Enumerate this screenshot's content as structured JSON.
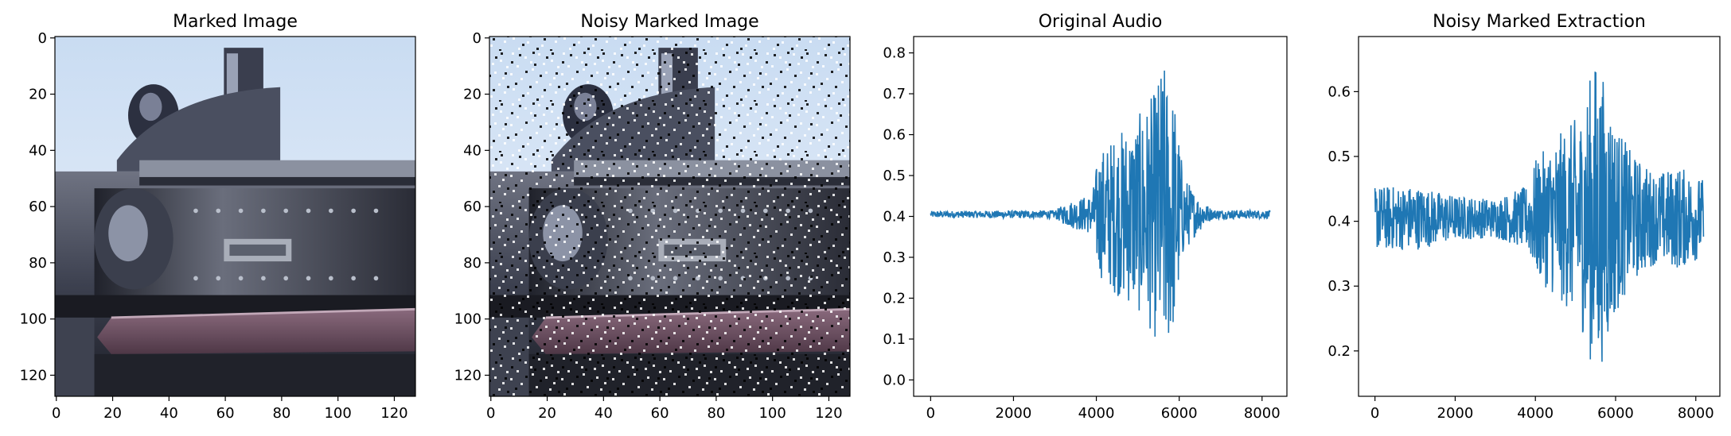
{
  "chart_data": [
    {
      "type": "image",
      "title": "Marked Image",
      "xticks": [
        0,
        20,
        40,
        60,
        80,
        100,
        120
      ],
      "yticks": [
        0,
        20,
        40,
        60,
        80,
        100,
        120
      ],
      "xlim": [
        -0.5,
        127.5
      ],
      "ylim": [
        127.5,
        -0.5
      ],
      "noise": false
    },
    {
      "type": "image",
      "title": "Noisy Marked Image",
      "xticks": [
        0,
        20,
        40,
        60,
        80,
        100,
        120
      ],
      "yticks": [
        0,
        20,
        40,
        60,
        80,
        100,
        120
      ],
      "xlim": [
        -0.5,
        127.5
      ],
      "ylim": [
        127.5,
        -0.5
      ],
      "noise": true
    },
    {
      "type": "line",
      "title": "Original Audio",
      "xticks": [
        0,
        2000,
        4000,
        6000,
        8000
      ],
      "yticks": [
        0.0,
        0.1,
        0.2,
        0.3,
        0.4,
        0.5,
        0.6,
        0.7,
        0.8
      ],
      "ytick_labels": [
        "0.0",
        "0.1",
        "0.2",
        "0.3",
        "0.4",
        "0.5",
        "0.6",
        "0.7",
        "0.8"
      ],
      "xlim": [
        -410,
        8600
      ],
      "ylim": [
        -0.04,
        0.84
      ],
      "color": "#1f77b4",
      "series": [
        {
          "baseline": 0.405,
          "envelope": [
            [
              0,
              0.008
            ],
            [
              3000,
              0.01
            ],
            [
              3300,
              0.03
            ],
            [
              3900,
              0.05
            ],
            [
              4050,
              0.15
            ],
            [
              4500,
              0.2
            ],
            [
              5000,
              0.24
            ],
            [
              5400,
              0.3
            ],
            [
              5600,
              0.38
            ],
            [
              5900,
              0.28
            ],
            [
              6100,
              0.1
            ],
            [
              6400,
              0.05
            ],
            [
              6800,
              0.012
            ],
            [
              8192,
              0.01
            ]
          ]
        }
      ]
    },
    {
      "type": "line",
      "title": "Noisy Marked Extraction",
      "xticks": [
        0,
        2000,
        4000,
        6000,
        8000
      ],
      "yticks": [
        0.2,
        0.3,
        0.4,
        0.5,
        0.6
      ],
      "ytick_labels": [
        "0.2",
        "0.3",
        "0.4",
        "0.5",
        "0.6"
      ],
      "xlim": [
        -410,
        8600
      ],
      "ylim": [
        0.13,
        0.685
      ],
      "color": "#1f77b4",
      "series": [
        {
          "baseline": 0.405,
          "envelope": [
            [
              0,
              0.05
            ],
            [
              1000,
              0.05
            ],
            [
              2000,
              0.035
            ],
            [
              3000,
              0.03
            ],
            [
              3800,
              0.05
            ],
            [
              4000,
              0.09
            ],
            [
              4600,
              0.13
            ],
            [
              5100,
              0.16
            ],
            [
              5500,
              0.25
            ],
            [
              5800,
              0.2
            ],
            [
              6000,
              0.15
            ],
            [
              6400,
              0.1
            ],
            [
              7000,
              0.07
            ],
            [
              7600,
              0.08
            ],
            [
              8192,
              0.06
            ]
          ]
        }
      ]
    }
  ]
}
